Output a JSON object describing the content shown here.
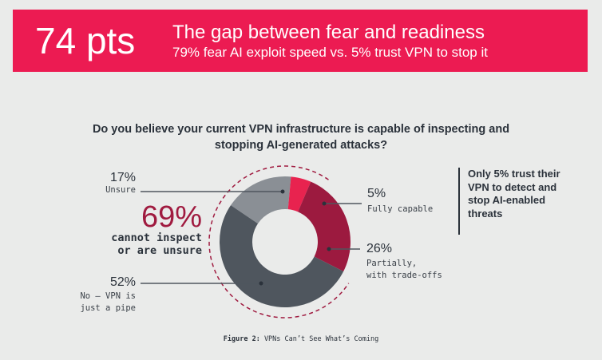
{
  "banner": {
    "stat": "74 pts",
    "title": "The gap between fear and readiness",
    "subtitle": "79% fear AI exploit speed vs. 5% trust VPN to stop it"
  },
  "chart_data": {
    "type": "pie",
    "title": "Do you believe your current VPN infrastructure is capable of inspecting and stopping AI-generated attacks?",
    "caption_prefix": "Figure 2:",
    "caption": "VPNs Can’t See What’s Coming",
    "slices": [
      {
        "pct_label": "17%",
        "label": "Unsure",
        "value": 17,
        "color": "#8a8f95"
      },
      {
        "pct_label": "5%",
        "label": "Fully capable",
        "value": 5,
        "color": "#e8234f"
      },
      {
        "pct_label": "26%",
        "label": "Partially, with trade-offs",
        "label_lines": [
          "Partially,",
          "with trade-offs"
        ],
        "value": 26,
        "color": "#9c1a3f"
      },
      {
        "pct_label": "52%",
        "label": "No — VPN is just a pipe",
        "label_lines": [
          "No — VPN is",
          "just a pipe"
        ],
        "value": 52,
        "color": "#4f565e"
      }
    ],
    "highlight": {
      "value": "69%",
      "lines": [
        "cannot inspect",
        "or are unsure"
      ],
      "color": "#a01b40"
    },
    "callout": "Only 5% trust their VPN to detect and stop AI-enabled threats"
  }
}
